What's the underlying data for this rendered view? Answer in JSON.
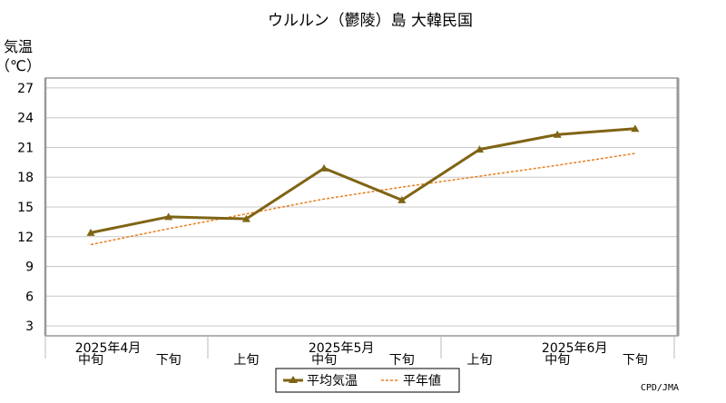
{
  "chart_data": {
    "type": "line",
    "title": "ウルルン（鬱陵）島 大韓民国",
    "ylabel_line1": "気温",
    "ylabel_line2": "（℃）",
    "ylim": [
      2,
      28
    ],
    "yticks": [
      3,
      6,
      9,
      12,
      15,
      18,
      21,
      24,
      27
    ],
    "grid": true,
    "legend_position": "bottom-center",
    "categories": [
      "中旬",
      "下旬",
      "上旬",
      "中旬",
      "下旬",
      "上旬",
      "中旬",
      "下旬"
    ],
    "month_labels": [
      {
        "label": "2025年4月",
        "index": 0
      },
      {
        "label": "2025年5月",
        "index": 3
      },
      {
        "label": "2025年6月",
        "index": 6
      }
    ],
    "series": [
      {
        "name": "平均気温",
        "color": "#7f6414",
        "style": "solid-triangle",
        "values": [
          12.4,
          14.0,
          13.8,
          18.9,
          15.7,
          20.8,
          22.3,
          22.9
        ]
      },
      {
        "name": "平年値",
        "color": "#e87e1e",
        "style": "dashed",
        "values": [
          11.2,
          12.8,
          14.3,
          15.8,
          17.0,
          18.1,
          19.2,
          20.4
        ]
      }
    ],
    "credit": "CPD/JMA"
  }
}
